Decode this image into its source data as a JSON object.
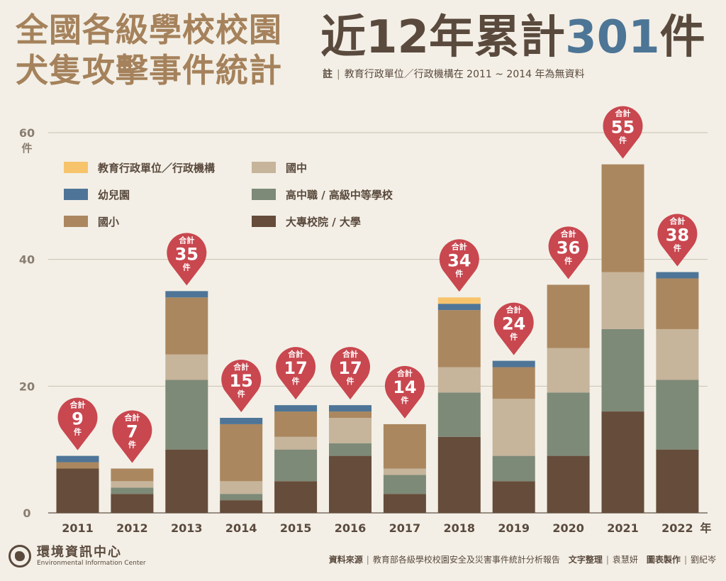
{
  "title": {
    "line1": "全國各級學校校園",
    "line2": "犬隻攻擊事件統計"
  },
  "headline": {
    "prefix": "近12年累計",
    "number": "301",
    "suffix": "件"
  },
  "note": {
    "label": "註",
    "text": "教育行政單位／行政機構在 2011 ~ 2014 年為無資料"
  },
  "footer": {
    "org_name": "環境資訊中心",
    "org_en": "Environmental Information Center",
    "source_label": "資料來源",
    "source_text": "教育部各級學校校園安全及災害事件統計分析報告",
    "writer_label": "文字整理",
    "writer_name": "袁慧妍",
    "designer_label": "圖表製作",
    "designer_name": "劉紀岑"
  },
  "chart_data": {
    "type": "bar",
    "stacked": true,
    "categories": [
      "2011",
      "2012",
      "2013",
      "2014",
      "2015",
      "2016",
      "2017",
      "2018",
      "2019",
      "2020",
      "2021",
      "2022"
    ],
    "x_unit": "年",
    "ylabel": "件",
    "ylim": [
      0,
      60
    ],
    "yticks": [
      0,
      20,
      40,
      60
    ],
    "grid": true,
    "legend_position": "top-left",
    "series": [
      {
        "name": "大專校院 / 大學",
        "color": "#664c3a",
        "values": [
          7,
          3,
          10,
          2,
          5,
          9,
          3,
          12,
          5,
          9,
          16,
          10
        ]
      },
      {
        "name": "高中職 / 高級中等學校",
        "color": "#7d8a77",
        "values": [
          0,
          1,
          11,
          1,
          5,
          2,
          3,
          7,
          4,
          10,
          13,
          11
        ]
      },
      {
        "name": "國中",
        "color": "#c6b49b",
        "values": [
          0,
          1,
          4,
          2,
          2,
          4,
          1,
          4,
          9,
          7,
          9,
          8
        ]
      },
      {
        "name": "國小",
        "color": "#ab875f",
        "values": [
          1,
          2,
          9,
          9,
          4,
          1,
          7,
          9,
          5,
          10,
          17,
          8
        ]
      },
      {
        "name": "幼兒園",
        "color": "#4e7597",
        "values": [
          1,
          0,
          1,
          1,
          1,
          1,
          0,
          1,
          1,
          0,
          0,
          1
        ]
      },
      {
        "name": "教育行政單位／行政機構",
        "color": "#f7c46c",
        "values": [
          0,
          0,
          0,
          0,
          0,
          0,
          0,
          1,
          0,
          0,
          0,
          0
        ]
      }
    ],
    "legend_order": [
      "教育行政單位／行政機構",
      "國中",
      "幼兒園",
      "高中職 / 高級中等學校",
      "國小",
      "大專校院 / 大學"
    ],
    "totals": [
      9,
      7,
      35,
      15,
      17,
      17,
      14,
      34,
      24,
      36,
      55,
      38
    ],
    "total_label_prefix": "合計",
    "total_label_suffix": "件",
    "pin_color": "#c9474f"
  }
}
